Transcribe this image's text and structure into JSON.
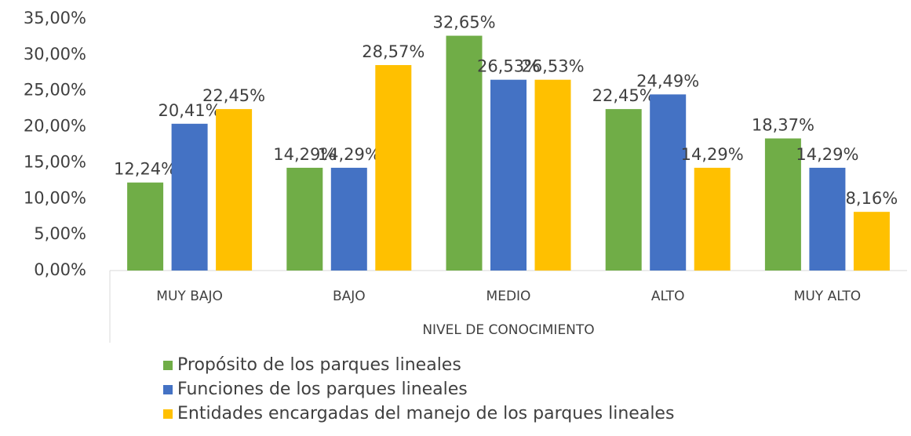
{
  "chart_data": {
    "type": "bar",
    "x_label": "NIVEL DE CONOCIMIENTO",
    "categories": [
      "MUY BAJO",
      "BAJO",
      "MEDIO",
      "ALTO",
      "MUY ALTO"
    ],
    "series": [
      {
        "name": "Propósito de los parques lineales",
        "color": "#70ad47",
        "values": [
          12.24,
          14.29,
          32.65,
          22.45,
          18.37
        ],
        "value_labels": [
          "12,24%",
          "14,29%",
          "32,65%",
          "22,45%",
          "18,37%"
        ]
      },
      {
        "name": "Funciones de los parques lineales",
        "color": "#4472c4",
        "values": [
          20.41,
          14.29,
          26.53,
          24.49,
          14.29
        ],
        "value_labels": [
          "20,41%",
          "14,29%",
          "26,53%",
          "24,49%",
          "14,29%"
        ]
      },
      {
        "name": "Entidades encargadas del manejo de los parques lineales",
        "color": "#ffc000",
        "values": [
          22.45,
          28.57,
          26.53,
          14.29,
          8.16
        ],
        "value_labels": [
          "22,45%",
          "28,57%",
          "26,53%",
          "14,29%",
          "8,16%"
        ]
      }
    ],
    "ylim": [
      0,
      35
    ],
    "yticks": [
      {
        "value": 0,
        "label": "0,00%"
      },
      {
        "value": 5,
        "label": "5,00%"
      },
      {
        "value": 10,
        "label": "10,00%"
      },
      {
        "value": 15,
        "label": "15,00%"
      },
      {
        "value": 20,
        "label": "20,00%"
      },
      {
        "value": 25,
        "label": "25,00%"
      },
      {
        "value": 30,
        "label": "30,00%"
      },
      {
        "value": 35,
        "label": "35,00%"
      }
    ],
    "grid": false,
    "legend": "bottom"
  }
}
